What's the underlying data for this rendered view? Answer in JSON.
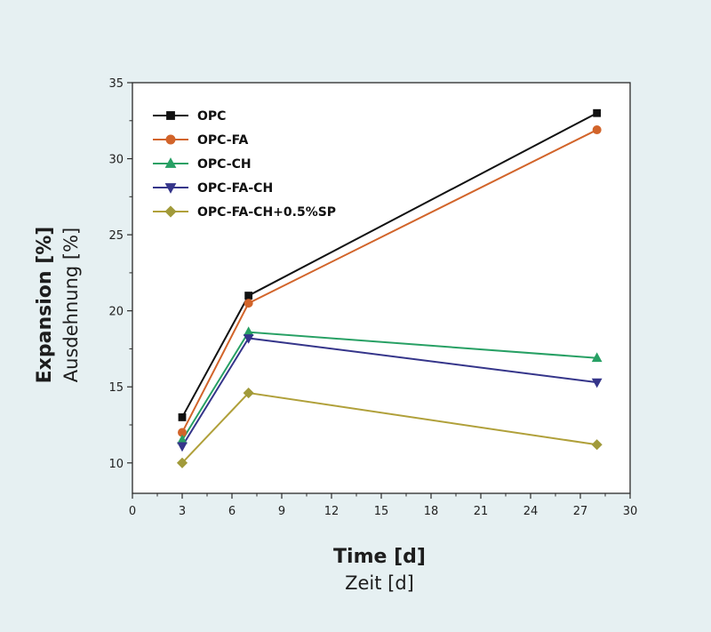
{
  "chart_data": {
    "type": "line",
    "xlabel": "Time [d]",
    "xlabel_secondary": "Zeit [d]",
    "ylabel": "Expansion [%]",
    "ylabel_secondary": "Ausdehnung [%]",
    "xlim": [
      0,
      30
    ],
    "ylim": [
      8,
      35
    ],
    "xticks": [
      0,
      3,
      6,
      9,
      12,
      15,
      18,
      21,
      24,
      27,
      30
    ],
    "yticks": [
      10,
      15,
      20,
      25,
      30,
      35
    ],
    "grid": false,
    "legend_position": "top-left",
    "x": [
      3,
      7,
      28
    ],
    "series": [
      {
        "name": "OPC",
        "values": [
          13,
          21,
          33
        ],
        "color": "#111111",
        "line_color": "#111111",
        "marker": "square"
      },
      {
        "name": "OPC-FA",
        "values": [
          12,
          20.5,
          31.9
        ],
        "color": "#d2642a",
        "line_color": "#d2642a",
        "marker": "circle"
      },
      {
        "name": "OPC-CH",
        "values": [
          11.5,
          18.6,
          16.9
        ],
        "color": "#27a064",
        "line_color": "#27a064",
        "marker": "triangle-up"
      },
      {
        "name": "OPC-FA-CH",
        "values": [
          11.1,
          18.2,
          15.3
        ],
        "color": "#35358a",
        "line_color": "#35358a",
        "marker": "triangle-down"
      },
      {
        "name": "OPC-FA-CH+0.5%SP",
        "values": [
          10,
          14.6,
          11.2
        ],
        "color": "#a19a3a",
        "line_color": "#b0a03a",
        "marker": "diamond"
      }
    ]
  }
}
